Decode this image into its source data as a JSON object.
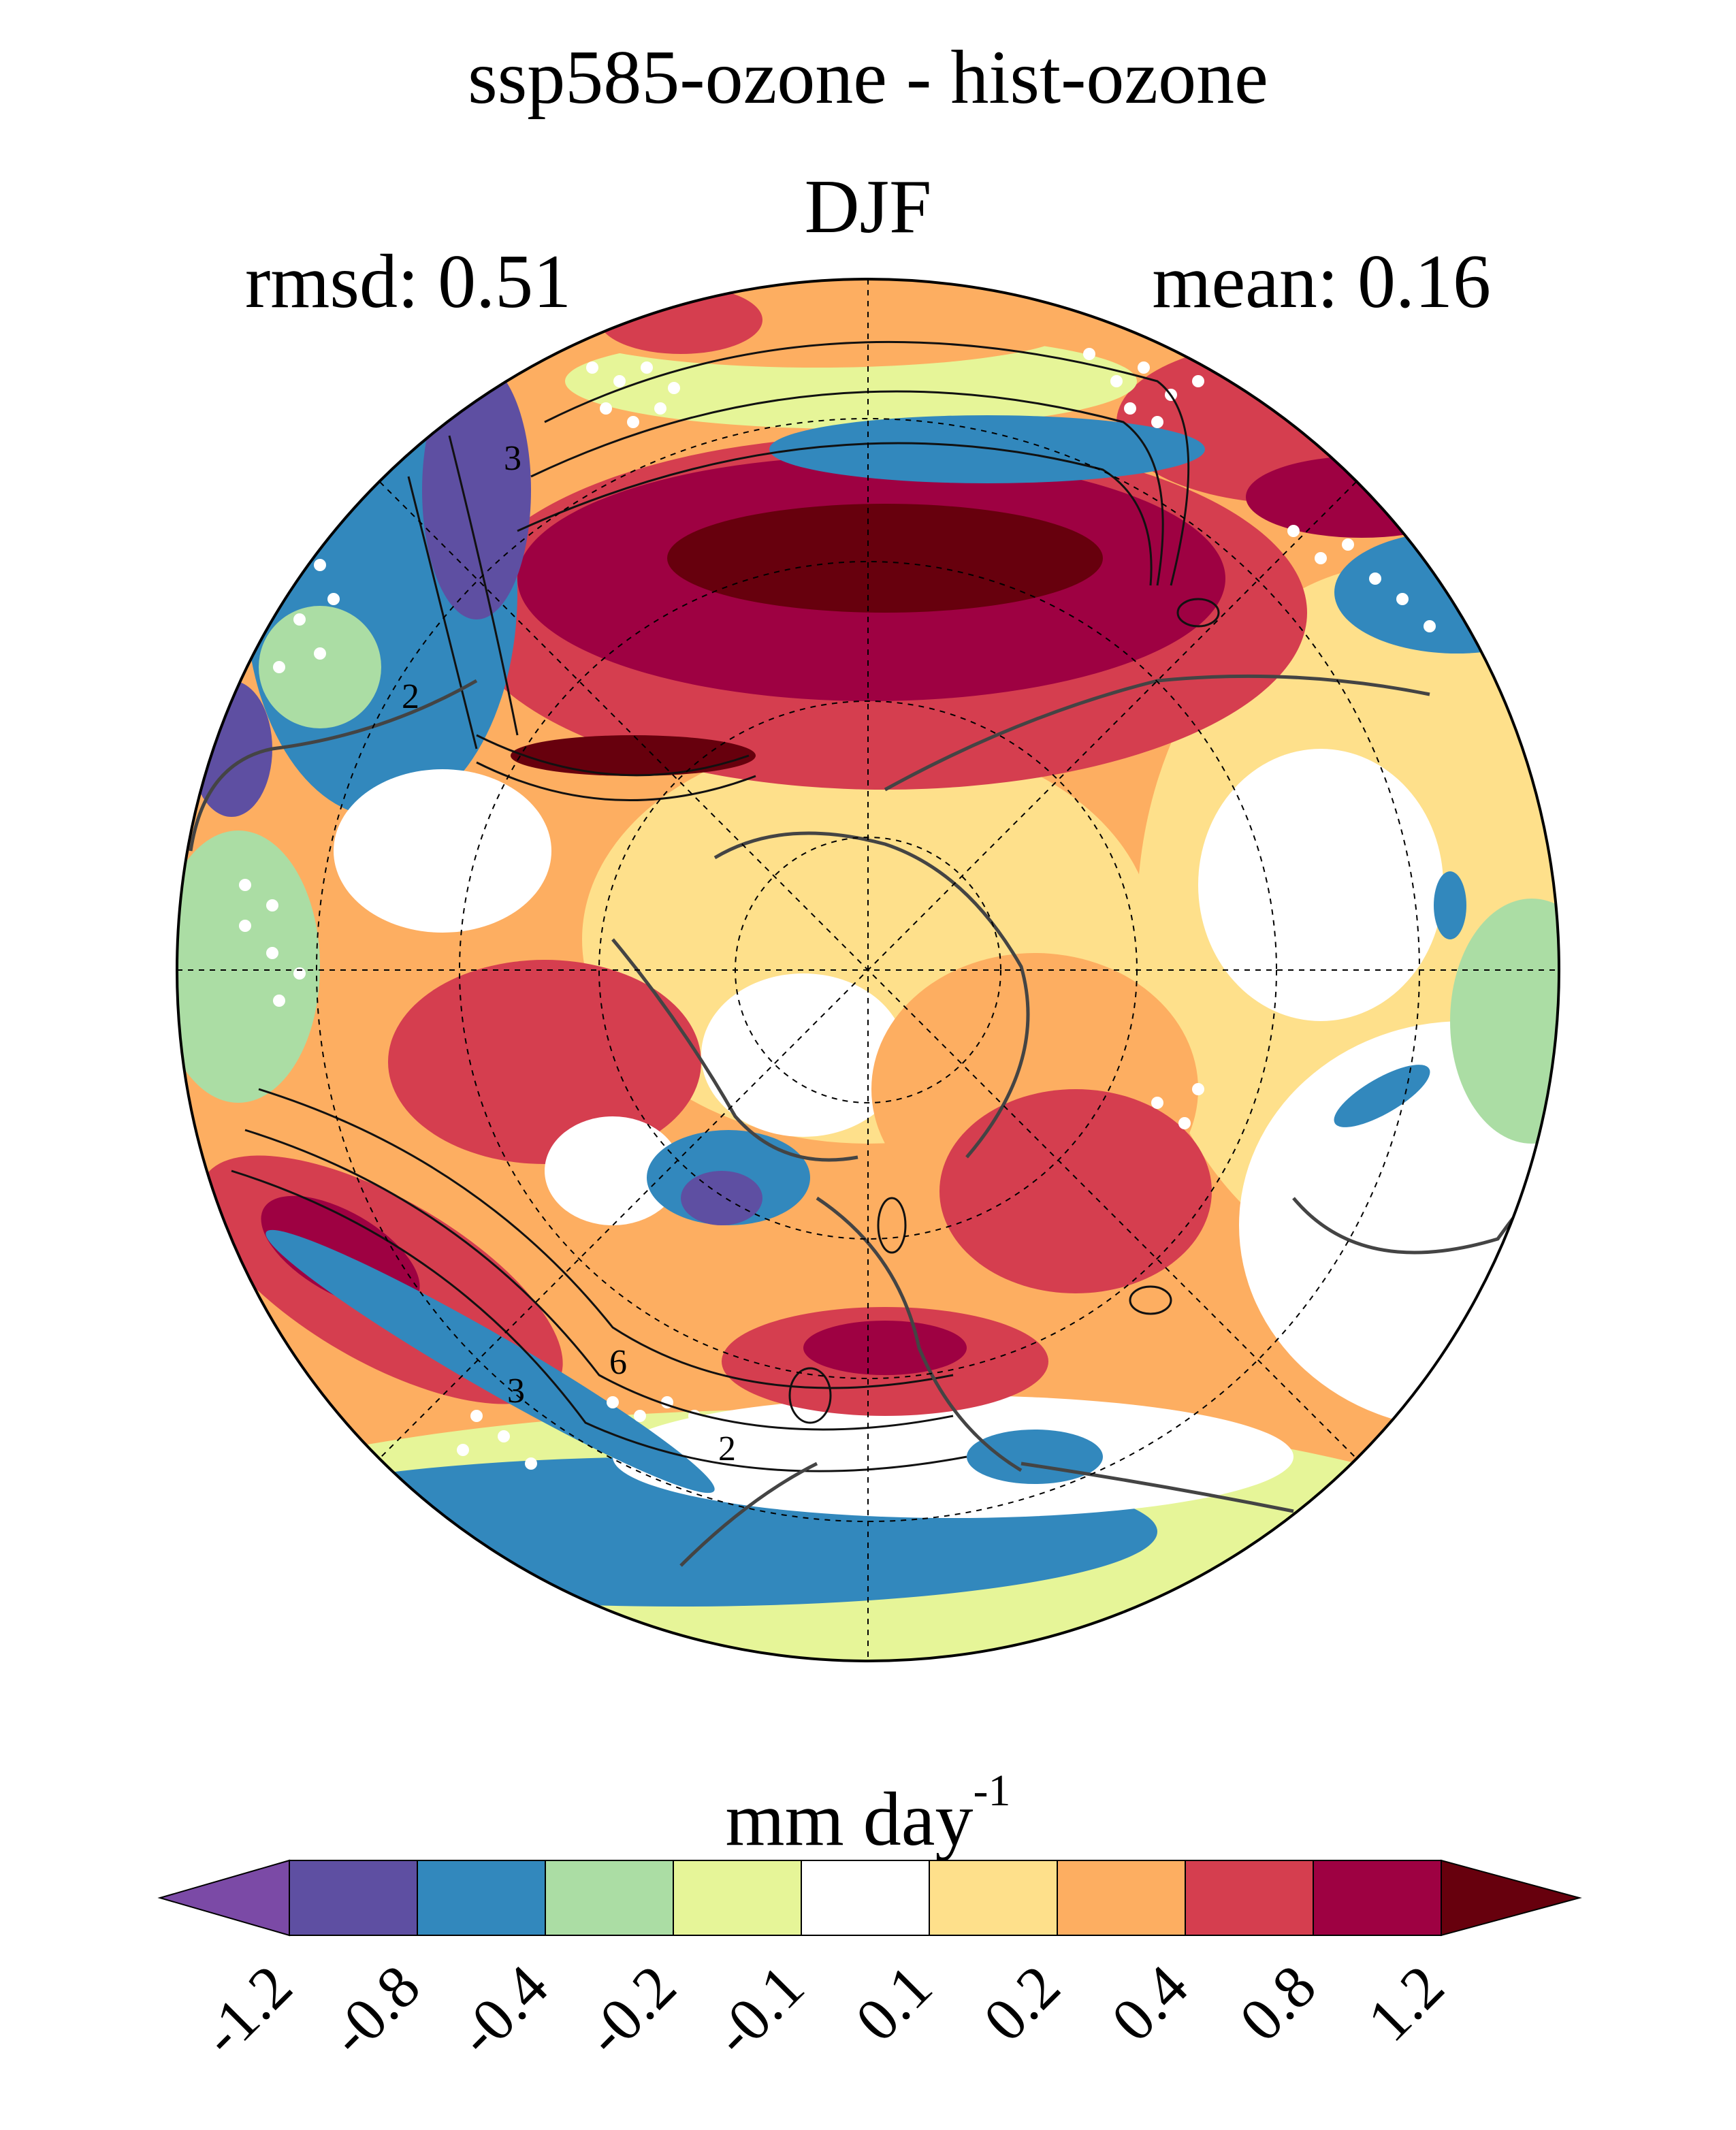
{
  "title": "ssp585-ozone - hist-ozone",
  "season": "DJF",
  "stats": {
    "rmsd": "rmsd: 0.51",
    "mean": "mean: 0.16"
  },
  "contour_labels": [
    "3",
    "2",
    "6",
    "3",
    "2"
  ],
  "colorbar": {
    "units_main": "mm day",
    "units_exp": "-1",
    "levels": [
      "-1.2",
      "-0.8",
      "-0.4",
      "-0.2",
      "-0.1",
      "0.1",
      "0.2",
      "0.4",
      "0.8",
      "1.2"
    ],
    "colors": [
      "#5e4fa2",
      "#3288bd",
      "#abdda4",
      "#e6f598",
      "#ffffff",
      "#fee08b",
      "#fdae61",
      "#d53e4f",
      "#9e0142"
    ],
    "low_end_color": "#7b4aa6",
    "high_end_color": "#67000d"
  },
  "map_colors": {
    "coastline": "#444444",
    "contour": "#111111",
    "stipple": "#ffffff",
    "graticule": "#000000"
  }
}
